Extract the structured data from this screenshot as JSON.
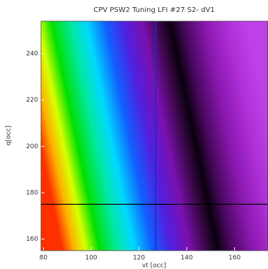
{
  "chart_data": {
    "type": "heatmap",
    "title": "CPV PSW2 Tuning LFI #27 S2- dV1",
    "xlabel": "vt [occ]",
    "ylabel": "q[occ]",
    "xlim": [
      79,
      174
    ],
    "ylim": [
      155,
      254
    ],
    "xticks": [
      80,
      100,
      120,
      140,
      160
    ],
    "yticks": [
      160,
      180,
      200,
      220,
      240
    ],
    "crosshair": {
      "x": 127,
      "y": 175
    }
  }
}
